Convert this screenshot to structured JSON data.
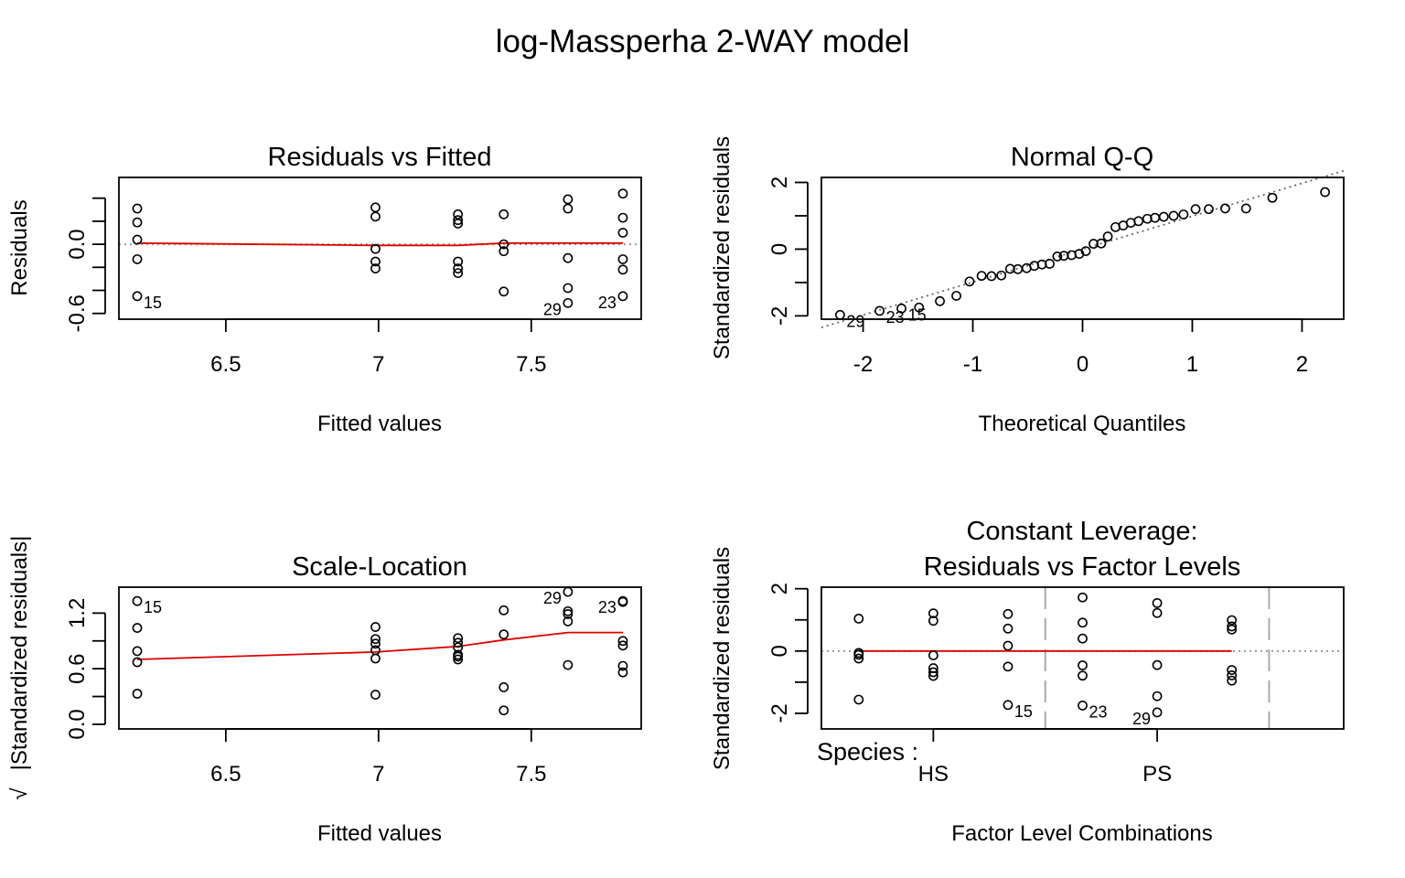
{
  "page_title": "log-Massperha 2-WAY model",
  "colors": {
    "smooth": "#DD0000",
    "reference": "#999999",
    "axis": "#000000"
  },
  "chart_data": [
    {
      "type": "scatter",
      "title": "Residuals vs Fitted",
      "xlabel": "Fitted values",
      "ylabel": "Residuals",
      "xlim": [
        6.15,
        7.86
      ],
      "ylim": [
        -0.65,
        0.58
      ],
      "xticks": [
        6.5,
        7.0,
        7.5
      ],
      "yticks": [
        -0.6,
        -0.4,
        -0.2,
        0.0,
        0.2,
        0.4
      ],
      "yticklabels": [
        "-0.6",
        "",
        "",
        "0.0",
        "",
        ""
      ],
      "ref_line_y": 0,
      "points": [
        [
          6.21,
          0.31
        ],
        [
          6.21,
          0.19
        ],
        [
          6.21,
          0.04
        ],
        [
          6.21,
          -0.13
        ],
        [
          6.21,
          -0.45
        ],
        [
          6.99,
          0.32
        ],
        [
          6.99,
          0.24
        ],
        [
          6.99,
          -0.04
        ],
        [
          6.99,
          -0.15
        ],
        [
          6.99,
          -0.21
        ],
        [
          7.26,
          0.26
        ],
        [
          7.26,
          0.18
        ],
        [
          7.26,
          0.21
        ],
        [
          7.26,
          -0.15
        ],
        [
          7.26,
          -0.21
        ],
        [
          7.26,
          -0.25
        ],
        [
          7.41,
          0.26
        ],
        [
          7.41,
          0.0
        ],
        [
          7.41,
          -0.06
        ],
        [
          7.41,
          -0.41
        ],
        [
          7.62,
          0.39
        ],
        [
          7.62,
          0.31
        ],
        [
          7.62,
          -0.12
        ],
        [
          7.62,
          -0.38
        ],
        [
          7.62,
          -0.51
        ],
        [
          7.8,
          0.44
        ],
        [
          7.8,
          0.23
        ],
        [
          7.8,
          0.1
        ],
        [
          7.8,
          -0.13
        ],
        [
          7.8,
          -0.22
        ],
        [
          7.8,
          -0.45
        ]
      ],
      "smooth": [
        [
          6.21,
          0.01
        ],
        [
          6.99,
          -0.01
        ],
        [
          7.26,
          -0.01
        ],
        [
          7.41,
          0.01
        ],
        [
          7.62,
          0.01
        ],
        [
          7.8,
          0.01
        ]
      ],
      "labels": [
        {
          "text": "15",
          "x": 6.21,
          "y": -0.45,
          "side": "right"
        },
        {
          "text": "29",
          "x": 7.62,
          "y": -0.51,
          "side": "left"
        },
        {
          "text": "23",
          "x": 7.8,
          "y": -0.45,
          "side": "left"
        }
      ]
    },
    {
      "type": "scatter",
      "title": "Normal Q-Q",
      "xlabel": "Theoretical Quantiles",
      "ylabel": "Standardized residuals",
      "xlim": [
        -2.38,
        2.38
      ],
      "ylim": [
        -2.1,
        2.15
      ],
      "xticks": [
        -2,
        -1,
        0,
        1,
        2
      ],
      "yticks": [
        -2,
        -1,
        0,
        1,
        2
      ],
      "yticklabels": [
        "-2",
        "",
        "0",
        "",
        "2"
      ],
      "qq_line": [
        [
          -2.38,
          -2.35
        ],
        [
          2.38,
          2.35
        ]
      ],
      "points": [
        [
          -2.21,
          -1.97
        ],
        [
          -1.85,
          -1.85
        ],
        [
          -1.65,
          -1.78
        ],
        [
          -1.49,
          -1.75
        ],
        [
          -1.3,
          -1.56
        ],
        [
          -1.15,
          -1.4
        ],
        [
          -1.03,
          -0.97
        ],
        [
          -0.92,
          -0.8
        ],
        [
          -0.83,
          -0.81
        ],
        [
          -0.74,
          -0.79
        ],
        [
          -0.66,
          -0.59
        ],
        [
          -0.59,
          -0.6
        ],
        [
          -0.51,
          -0.57
        ],
        [
          -0.44,
          -0.5
        ],
        [
          -0.37,
          -0.46
        ],
        [
          -0.3,
          -0.44
        ],
        [
          -0.23,
          -0.22
        ],
        [
          -0.17,
          -0.2
        ],
        [
          -0.1,
          -0.18
        ],
        [
          -0.03,
          -0.14
        ],
        [
          0.03,
          -0.06
        ],
        [
          0.1,
          0.16
        ],
        [
          0.17,
          0.17
        ],
        [
          0.23,
          0.38
        ],
        [
          0.3,
          0.66
        ],
        [
          0.37,
          0.71
        ],
        [
          0.44,
          0.79
        ],
        [
          0.51,
          0.84
        ],
        [
          0.59,
          0.91
        ],
        [
          0.66,
          0.94
        ],
        [
          0.74,
          0.97
        ],
        [
          0.83,
          1.0
        ],
        [
          0.92,
          1.04
        ],
        [
          1.03,
          1.2
        ],
        [
          1.15,
          1.2
        ],
        [
          1.3,
          1.22
        ],
        [
          1.49,
          1.22
        ],
        [
          1.73,
          1.54
        ],
        [
          2.21,
          1.71
        ]
      ],
      "labels": [
        {
          "text": "29",
          "x": -2.21,
          "y": -1.97,
          "side": "right"
        },
        {
          "text": "23",
          "x": -1.85,
          "y": -1.85,
          "side": "right"
        },
        {
          "text": "15",
          "x": -1.65,
          "y": -1.78,
          "side": "right"
        }
      ]
    },
    {
      "type": "scatter",
      "title": "Scale-Location",
      "xlabel": "Fitted values",
      "ylabel": "|Standardized residuals|",
      "ylabel_prefix": "√",
      "xlim": [
        6.15,
        7.86
      ],
      "ylim": [
        -0.05,
        1.48
      ],
      "xticks": [
        6.5,
        7.0,
        7.5
      ],
      "yticks": [
        0.0,
        0.3,
        0.6,
        0.9,
        1.2
      ],
      "yticklabels": [
        "0.0",
        "",
        "0.6",
        "",
        "1.2"
      ],
      "points": [
        [
          6.21,
          1.33
        ],
        [
          6.21,
          1.04
        ],
        [
          6.21,
          0.79
        ],
        [
          6.21,
          0.67
        ],
        [
          6.21,
          0.33
        ],
        [
          6.99,
          1.05
        ],
        [
          6.99,
          0.92
        ],
        [
          6.99,
          0.87
        ],
        [
          6.99,
          0.8
        ],
        [
          6.99,
          0.71
        ],
        [
          6.99,
          0.32
        ],
        [
          7.26,
          0.93
        ],
        [
          7.26,
          0.88
        ],
        [
          7.26,
          0.83
        ],
        [
          7.26,
          0.75
        ],
        [
          7.26,
          0.73
        ],
        [
          7.26,
          0.7
        ],
        [
          7.41,
          1.23
        ],
        [
          7.41,
          0.97
        ],
        [
          7.41,
          0.4
        ],
        [
          7.41,
          0.15
        ],
        [
          7.62,
          1.43
        ],
        [
          7.62,
          1.22
        ],
        [
          7.62,
          1.19
        ],
        [
          7.62,
          1.11
        ],
        [
          7.62,
          0.64
        ],
        [
          7.8,
          1.33
        ],
        [
          7.8,
          1.32
        ],
        [
          7.8,
          0.9
        ],
        [
          7.8,
          0.85
        ],
        [
          7.8,
          0.63
        ],
        [
          7.8,
          0.56
        ]
      ],
      "smooth": [
        [
          6.21,
          0.7
        ],
        [
          6.99,
          0.78
        ],
        [
          7.26,
          0.84
        ],
        [
          7.41,
          0.91
        ],
        [
          7.62,
          0.99
        ],
        [
          7.8,
          0.99
        ]
      ],
      "labels": [
        {
          "text": "15",
          "x": 6.21,
          "y": 1.33,
          "side": "right"
        },
        {
          "text": "29",
          "x": 7.62,
          "y": 1.43,
          "side": "left"
        },
        {
          "text": "23",
          "x": 7.8,
          "y": 1.33,
          "side": "left"
        }
      ]
    },
    {
      "type": "scatter",
      "title_lines": [
        "Constant Leverage:",
        "Residuals vs Factor Levels"
      ],
      "xlabel": "Factor Level Combinations",
      "ylabel": "Standardized residuals",
      "factor_label": "Species :",
      "xlim": [
        0.5,
        7.5
      ],
      "ylim": [
        -2.5,
        2.05
      ],
      "yticks": [
        -2,
        -1,
        0,
        1,
        2
      ],
      "yticklabels": [
        "-2",
        "",
        "0",
        "",
        "2"
      ],
      "groups": [
        {
          "name": "HS",
          "x": 2
        },
        {
          "name": "PS",
          "x": 5
        }
      ],
      "separators": [
        0.5,
        3.5,
        6.5
      ],
      "ref_line_y": 0,
      "points": [
        [
          1,
          1.04
        ],
        [
          1,
          -0.06
        ],
        [
          1,
          -0.12
        ],
        [
          1,
          -0.24
        ],
        [
          1,
          -1.56
        ],
        [
          2,
          1.21
        ],
        [
          2,
          0.97
        ],
        [
          2,
          -0.14
        ],
        [
          2,
          -0.55
        ],
        [
          2,
          -0.68
        ],
        [
          2,
          -0.8
        ],
        [
          3,
          1.19
        ],
        [
          3,
          0.72
        ],
        [
          3,
          0.17
        ],
        [
          3,
          -0.5
        ],
        [
          3,
          -1.73
        ],
        [
          4,
          1.72
        ],
        [
          4,
          0.91
        ],
        [
          4,
          0.4
        ],
        [
          4,
          -0.46
        ],
        [
          4,
          -0.79
        ],
        [
          4,
          -1.75
        ],
        [
          5,
          1.54
        ],
        [
          5,
          1.22
        ],
        [
          5,
          -0.45
        ],
        [
          5,
          -1.45
        ],
        [
          5,
          -1.97
        ],
        [
          6,
          0.99
        ],
        [
          6,
          0.79
        ],
        [
          6,
          0.69
        ],
        [
          6,
          -0.61
        ],
        [
          6,
          -0.78
        ],
        [
          6,
          -0.95
        ]
      ],
      "smooth": [
        [
          1,
          0.0
        ],
        [
          2,
          0.0
        ],
        [
          3,
          0.0
        ],
        [
          4,
          0.0
        ],
        [
          5,
          0.0
        ],
        [
          6,
          0.0
        ]
      ],
      "labels": [
        {
          "text": "15",
          "x": 3,
          "y": -1.73,
          "side": "right"
        },
        {
          "text": "23",
          "x": 4,
          "y": -1.75,
          "side": "right"
        },
        {
          "text": "29",
          "x": 5,
          "y": -1.97,
          "side": "left"
        }
      ]
    }
  ]
}
